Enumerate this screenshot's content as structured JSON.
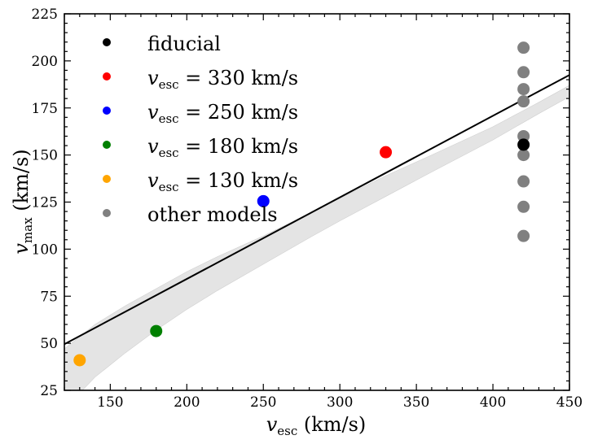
{
  "chart_data": {
    "type": "scatter",
    "xlabel": "v_esc (km/s)",
    "ylabel": "v_max (km/s)",
    "xlim": [
      120,
      450
    ],
    "ylim": [
      25,
      225
    ],
    "xticks": [
      150,
      200,
      250,
      300,
      350,
      400,
      450
    ],
    "yticks": [
      25,
      50,
      75,
      100,
      125,
      150,
      175,
      200,
      225
    ],
    "legend_position": "top-left",
    "series": [
      {
        "name": "fiducial",
        "label_prefix": "fiducial",
        "color": "#000000",
        "points": [
          [
            420,
            155.5
          ]
        ]
      },
      {
        "name": "v_esc = 330 km/s",
        "label_prefix": "v",
        "label_sub": "esc",
        "label_suffix": " = 330 km/s",
        "color": "#ff0000",
        "points": [
          [
            330,
            151.5
          ]
        ]
      },
      {
        "name": "v_esc = 250 km/s",
        "label_prefix": "v",
        "label_sub": "esc",
        "label_suffix": " = 250 km/s",
        "color": "#0000ff",
        "points": [
          [
            250,
            125.5
          ]
        ]
      },
      {
        "name": "v_esc = 180 km/s",
        "label_prefix": "v",
        "label_sub": "esc",
        "label_suffix": " = 180 km/s",
        "color": "#008000",
        "points": [
          [
            180,
            56.5
          ]
        ]
      },
      {
        "name": "v_esc = 130 km/s",
        "label_prefix": "v",
        "label_sub": "esc",
        "label_suffix": " = 130 km/s",
        "color": "#ffa500",
        "points": [
          [
            130,
            41
          ]
        ]
      },
      {
        "name": "other models",
        "label_prefix": "other models",
        "color": "#808080",
        "points": [
          [
            420,
            207
          ],
          [
            420,
            194
          ],
          [
            420,
            185
          ],
          [
            420,
            178.5
          ],
          [
            420,
            160
          ],
          [
            420,
            150
          ],
          [
            420,
            136
          ],
          [
            420,
            122.5
          ],
          [
            420,
            107
          ]
        ]
      }
    ],
    "fit_line": {
      "color": "#000000",
      "points": [
        [
          120,
          49.5
        ],
        [
          450,
          192.5
        ]
      ]
    },
    "shaded_band": {
      "color": "#e4e4e4",
      "upper": [
        [
          120,
          47
        ],
        [
          140,
          60
        ],
        [
          160,
          70
        ],
        [
          180,
          79
        ],
        [
          200,
          88
        ],
        [
          220,
          96
        ],
        [
          250,
          107
        ],
        [
          280,
          119
        ],
        [
          300,
          127
        ],
        [
          330,
          139
        ],
        [
          360,
          150
        ],
        [
          400,
          165
        ],
        [
          430,
          178
        ],
        [
          450,
          187
        ]
      ],
      "lower": [
        [
          120,
          15
        ],
        [
          140,
          32
        ],
        [
          160,
          45
        ],
        [
          180,
          57
        ],
        [
          200,
          68
        ],
        [
          220,
          78
        ],
        [
          250,
          92
        ],
        [
          280,
          106
        ],
        [
          300,
          115
        ],
        [
          330,
          128
        ],
        [
          360,
          141
        ],
        [
          400,
          158
        ],
        [
          430,
          172
        ],
        [
          450,
          181
        ]
      ]
    }
  }
}
